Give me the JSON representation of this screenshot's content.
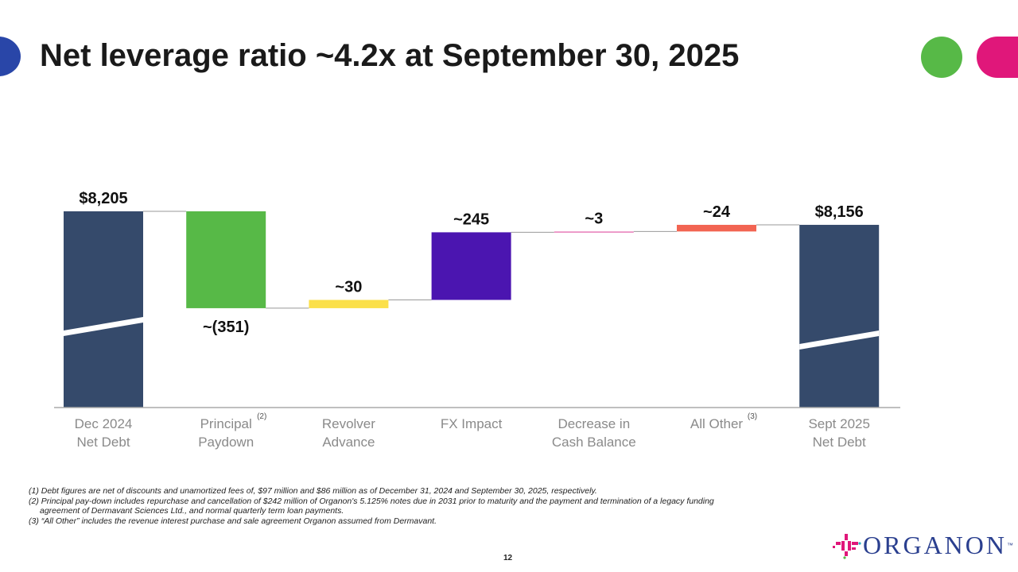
{
  "title": "Net leverage ratio ~4.2x at September 30, 2025",
  "page_number": "12",
  "logo": {
    "text": "ORGANON",
    "tm": "™"
  },
  "colors": {
    "navy": "#354A6B",
    "green": "#57B947",
    "yellow": "#FBE04A",
    "purple": "#4B15B0",
    "pink": "#E77BB8",
    "orange": "#F26452",
    "blue_dot": "#2946A8",
    "green_dot": "#57B947",
    "magenta_dot": "#E0177A"
  },
  "footnotes": [
    "(1) Debt figures are net of discounts and unamortized fees of, $97 million and $86 million as of December 31, 2024 and September 30, 2025, respectively.",
    "(2) Principal pay-down includes repurchase and cancellation of $242 million of Organon's 5.125% notes due in 2031 prior to maturity and the payment and termination of a legacy funding",
    "agreement of Dermavant Sciences Ltd., and normal quarterly term loan payments.",
    "(3) “All Other” includes the revenue interest purchase and sale agreement Organon assumed from Dermavant."
  ],
  "chart_data": {
    "type": "waterfall",
    "title": "Net leverage ratio ~4.2x at September 30, 2025",
    "categories": [
      [
        "Dec 2024",
        "Net Debt"
      ],
      [
        "Principal",
        "Paydown"
      ],
      [
        "Revolver",
        "Advance"
      ],
      [
        "FX Impact",
        ""
      ],
      [
        "Decrease in",
        "Cash Balance"
      ],
      [
        "All Other",
        ""
      ],
      [
        "Sept 2025",
        "Net Debt"
      ]
    ],
    "superscripts": [
      "",
      "(2)",
      "",
      "",
      "",
      "(3)",
      ""
    ],
    "values": [
      8205,
      -351,
      30,
      245,
      3,
      24,
      8156
    ],
    "kinds": [
      "total",
      "delta",
      "delta",
      "delta",
      "delta",
      "delta",
      "total"
    ],
    "labels": [
      "$8,205",
      "~(351)",
      "~30",
      "~245",
      "~3",
      "~24",
      "$8,156"
    ],
    "bar_colors": [
      "#354A6B",
      "#57B947",
      "#FBE04A",
      "#4B15B0",
      "#E77BB8",
      "#F26452",
      "#354A6B"
    ],
    "ylim": [
      7494,
      8300
    ],
    "broken_axis": true,
    "units": "$ millions"
  }
}
